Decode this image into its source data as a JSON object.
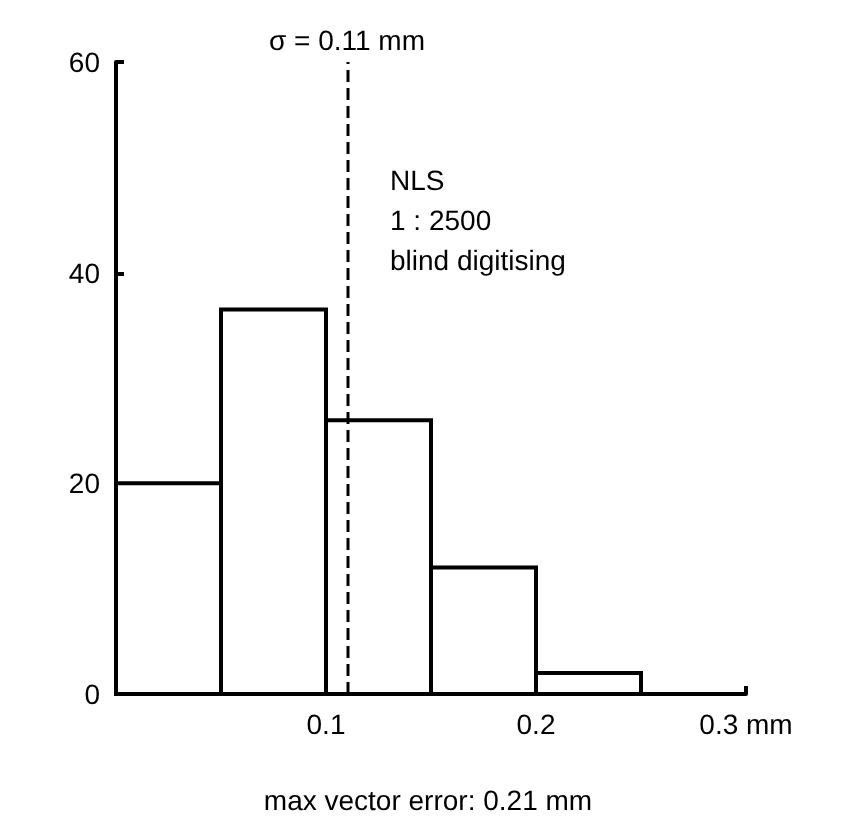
{
  "chart_data": {
    "type": "histogram",
    "bins": [
      0,
      0.05,
      0.1,
      0.15,
      0.2,
      0.25
    ],
    "values": [
      20,
      36.5,
      26,
      12,
      2
    ],
    "color": "#000000",
    "xlim": [
      0,
      0.3
    ],
    "xticks": [
      0.1,
      0.2,
      {
        "value": 0.3,
        "label": "0.3 mm"
      }
    ],
    "ylim": [
      0,
      60
    ],
    "yticks": [
      0,
      20,
      40,
      60
    ],
    "grid": false,
    "ref_lines": [
      {
        "axis": "x",
        "value": 0.11,
        "label": "σ = 0.11 mm",
        "line_style": "dashed",
        "color": "#000000"
      }
    ],
    "annotations": [
      "NLS\n1 : 2500\nblind digitising",
      "max vector error: 0.21 mm"
    ]
  }
}
